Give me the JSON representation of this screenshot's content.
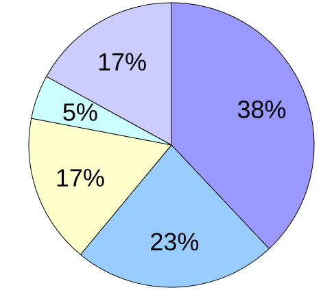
{
  "chart_data": {
    "type": "pie",
    "title": "",
    "start_angle_deg": 0,
    "direction": "clockwise",
    "legend": "none",
    "slices": [
      {
        "value": 38,
        "label": "38%",
        "color": "#9999ff"
      },
      {
        "value": 23,
        "label": "23%",
        "color": "#99ccff"
      },
      {
        "value": 17,
        "label": "17%",
        "color": "#ffffcc"
      },
      {
        "value": 5,
        "label": "5%",
        "color": "#ccffff"
      },
      {
        "value": 17,
        "label": "17%",
        "color": "#ccccff"
      }
    ]
  }
}
